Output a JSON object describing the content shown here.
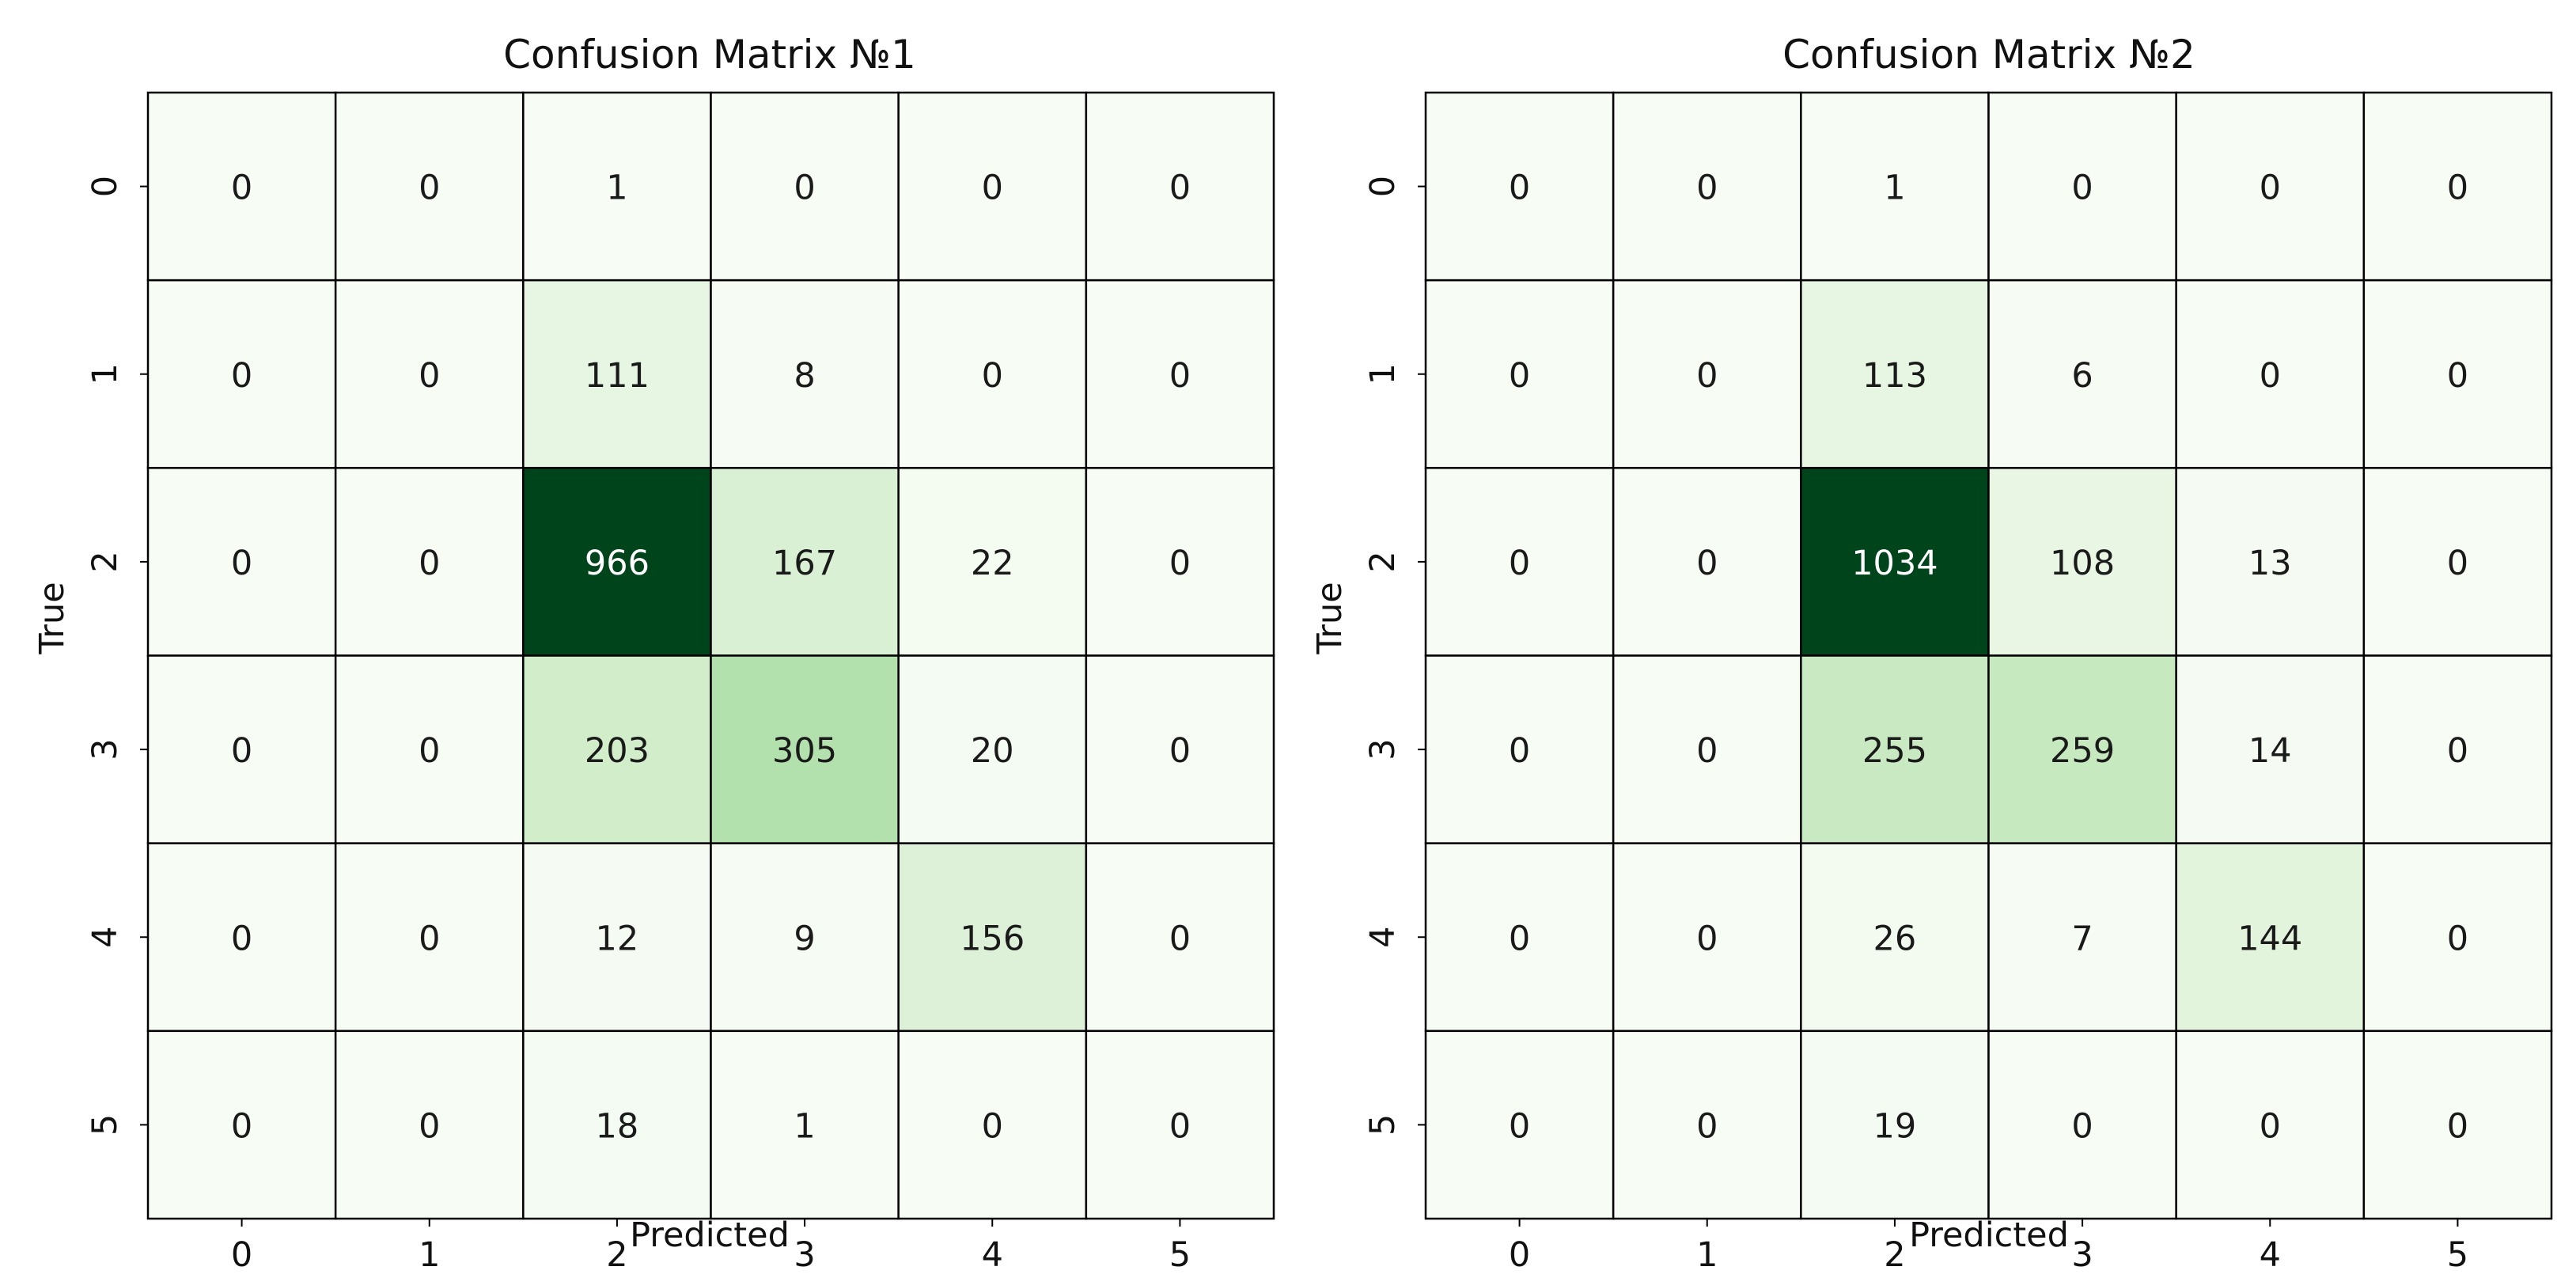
{
  "chart_data": [
    {
      "type": "heatmap",
      "title": "Confusion Matrix №1",
      "xlabel": "Predicted",
      "ylabel": "True",
      "x_categories": [
        "0",
        "1",
        "2",
        "3",
        "4",
        "5"
      ],
      "y_categories": [
        "0",
        "1",
        "2",
        "3",
        "4",
        "5"
      ],
      "values": [
        [
          0,
          0,
          1,
          0,
          0,
          0
        ],
        [
          0,
          0,
          111,
          8,
          0,
          0
        ],
        [
          0,
          0,
          966,
          167,
          22,
          0
        ],
        [
          0,
          0,
          203,
          305,
          20,
          0
        ],
        [
          0,
          0,
          12,
          9,
          156,
          0
        ],
        [
          0,
          0,
          18,
          1,
          0,
          0
        ]
      ],
      "colormap": "Greens",
      "colorbar": false,
      "grid": true
    },
    {
      "type": "heatmap",
      "title": "Confusion Matrix №2",
      "xlabel": "Predicted",
      "ylabel": "True",
      "x_categories": [
        "0",
        "1",
        "2",
        "3",
        "4",
        "5"
      ],
      "y_categories": [
        "0",
        "1",
        "2",
        "3",
        "4",
        "5"
      ],
      "values": [
        [
          0,
          0,
          1,
          0,
          0,
          0
        ],
        [
          0,
          0,
          113,
          6,
          0,
          0
        ],
        [
          0,
          0,
          1034,
          108,
          13,
          0
        ],
        [
          0,
          0,
          255,
          259,
          14,
          0
        ],
        [
          0,
          0,
          26,
          7,
          144,
          0
        ],
        [
          0,
          0,
          19,
          0,
          0,
          0
        ]
      ],
      "colormap": "Greens",
      "colorbar": false,
      "grid": true
    }
  ],
  "colors": {
    "cell_border": "#000000",
    "text_dark": "#1a1a1a",
    "text_light": "#ffffff",
    "greens_low": "#f7fcf5",
    "greens_high": "#00441b"
  }
}
